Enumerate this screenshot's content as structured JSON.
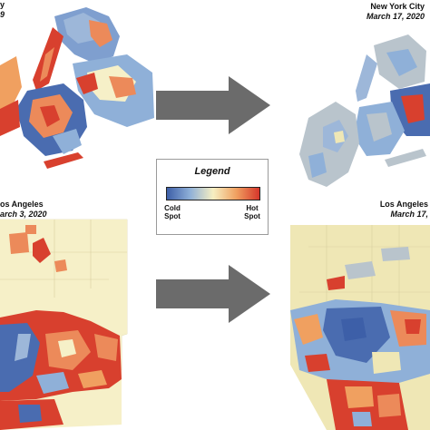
{
  "panels": {
    "nyc_before": {
      "subtitle_partial": "y",
      "date_partial": "9"
    },
    "nyc_after": {
      "title": "New York City",
      "date": "March 17, 2020"
    },
    "la_before": {
      "title_partial": "os Angeles",
      "date_partial": "arch 3, 2020"
    },
    "la_after": {
      "title_partial": "Los Angeles",
      "date_partial": "March 17,"
    }
  },
  "legend": {
    "title": "Legend",
    "low_label_line1": "Cold",
    "low_label_line2": "Spot",
    "high_label_line1": "Hot",
    "high_label_line2": "Spot",
    "colors": [
      "#3d5fa8",
      "#8fb0d8",
      "#f6efc2",
      "#f0a060",
      "#d6362b"
    ]
  },
  "arrows": {
    "color": "#6b6b6b",
    "direction": "right"
  },
  "map_colors": {
    "cold": "#4a6cb0",
    "neutral": "#efe7b5",
    "pale": "#f6f0c8",
    "hot": "#d8402e",
    "warm": "#ec8a5a",
    "cool": "#9db7d9",
    "gray": "#b9c4cc"
  }
}
